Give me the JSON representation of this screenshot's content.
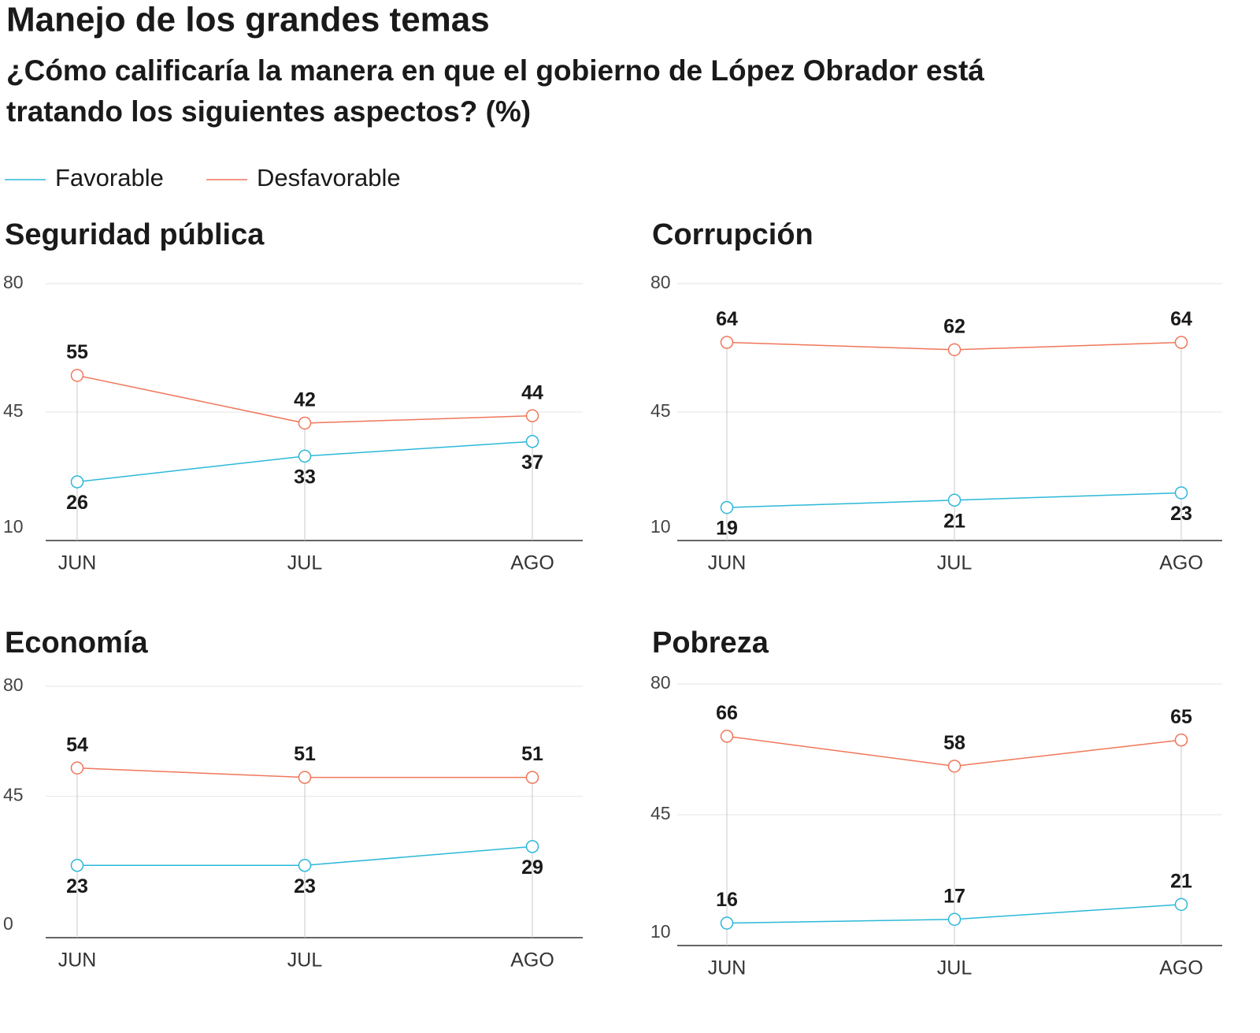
{
  "header": {
    "title": "Manejo de los grandes temas",
    "subtitle": [
      "¿Cómo calificaría la manera en que el gobierno de López Obrador está",
      "tratando los siguientes aspectos? (%)"
    ]
  },
  "legend": [
    {
      "name": "Favorable",
      "color": "#2bb8d8"
    },
    {
      "name": "Desfavorable",
      "color": "#f0765a"
    }
  ],
  "chart_data": [
    {
      "type": "line",
      "title": "Seguridad pública",
      "categories": [
        "JUN",
        "JUL",
        "AGO"
      ],
      "series": [
        {
          "values": [
            26,
            33,
            37
          ]
        },
        {
          "values": [
            55,
            42,
            44
          ]
        }
      ],
      "ylim": [
        10,
        80
      ],
      "yticks": [
        10,
        45,
        80
      ],
      "grid": true
    },
    {
      "type": "line",
      "title": "Corrupción",
      "categories": [
        "JUN",
        "JUL",
        "AGO"
      ],
      "series": [
        {
          "values": [
            19,
            21,
            23
          ]
        },
        {
          "values": [
            64,
            62,
            64
          ]
        }
      ],
      "ylim": [
        10,
        80
      ],
      "yticks": [
        10,
        45,
        80
      ],
      "grid": true
    },
    {
      "type": "line",
      "title": "Economía",
      "categories": [
        "JUN",
        "JUL",
        "AGO"
      ],
      "series": [
        {
          "values": [
            23,
            23,
            29
          ]
        },
        {
          "values": [
            54,
            51,
            51
          ]
        }
      ],
      "ylim": [
        0,
        80
      ],
      "yticks": [
        0,
        45,
        80
      ],
      "grid": true
    },
    {
      "type": "line",
      "title": "Pobreza",
      "categories": [
        "JUN",
        "JUL",
        "AGO"
      ],
      "series": [
        {
          "values": [
            16,
            17,
            21
          ]
        },
        {
          "values": [
            66,
            58,
            65
          ]
        }
      ],
      "ylim": [
        10,
        80
      ],
      "yticks": [
        10,
        45,
        80
      ],
      "grid": true
    }
  ]
}
